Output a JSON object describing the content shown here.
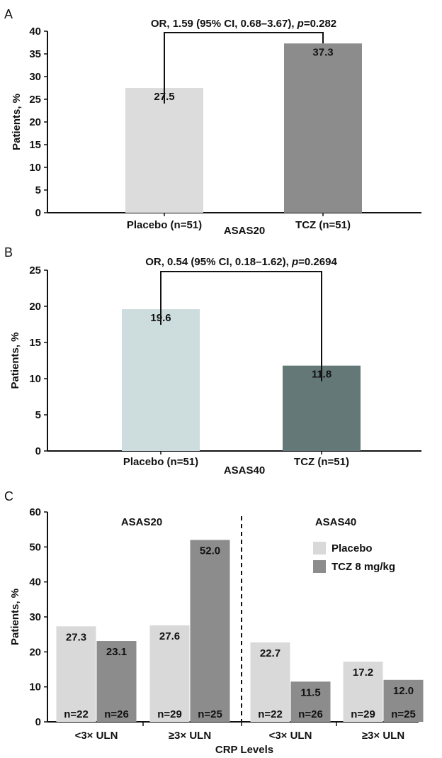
{
  "chart_data": [
    {
      "panel": "A",
      "type": "bar",
      "categories": [
        "Placebo (n=51)",
        "TCZ (n=51)"
      ],
      "values": [
        27.5,
        37.3
      ],
      "value_labels": [
        "27.5",
        "37.3"
      ],
      "colors": [
        "#dcdcdc",
        "#8c8c8c"
      ],
      "xlabel": "ASAS20",
      "ylabel": "Patients, %",
      "ylim": [
        0,
        40
      ],
      "yticks": [
        0,
        5,
        10,
        15,
        20,
        25,
        30,
        35,
        40
      ],
      "annotation": {
        "prefix": "OR, 1.59 (95% CI, 0.68–3.67), ",
        "p_symbol": "p",
        "suffix": "=0.282"
      },
      "grid": false
    },
    {
      "panel": "B",
      "type": "bar",
      "categories": [
        "Placebo (n=51)",
        "TCZ (n=51)"
      ],
      "values": [
        19.6,
        11.8
      ],
      "value_labels": [
        "19.6",
        "11.8"
      ],
      "colors": [
        "#cddcdc",
        "#647878"
      ],
      "xlabel": "ASAS40",
      "ylabel": "Patients, %",
      "ylim": [
        0,
        25
      ],
      "yticks": [
        0,
        5,
        10,
        15,
        20,
        25
      ],
      "annotation": {
        "prefix": "OR, 0.54 (95% CI, 0.18–1.62), ",
        "p_symbol": "p",
        "suffix": "=0.2694"
      },
      "grid": false
    },
    {
      "panel": "C",
      "type": "bar",
      "groups": [
        "ASAS20",
        "ASAS40"
      ],
      "categories": [
        "<3× ULN",
        "≥3× ULN",
        "<3× ULN",
        "≥3× ULN"
      ],
      "series": [
        {
          "name": "Placebo",
          "color": "#d9d9d9",
          "values": [
            27.3,
            27.6,
            22.7,
            17.2
          ],
          "value_labels": [
            "27.3",
            "27.6",
            "22.7",
            "17.2"
          ],
          "n_labels": [
            "n=22",
            "n=29",
            "n=22",
            "n=29"
          ]
        },
        {
          "name": "TCZ 8 mg/kg",
          "color": "#8c8c8c",
          "values": [
            23.1,
            52.0,
            11.5,
            12.0
          ],
          "value_labels": [
            "23.1",
            "52.0",
            "11.5",
            "12.0"
          ],
          "n_labels": [
            "n=26",
            "n=25",
            "n=26",
            "n=25"
          ]
        }
      ],
      "xlabel": "CRP Levels",
      "ylabel": "Patients, %",
      "ylim": [
        0,
        60
      ],
      "yticks": [
        0,
        10,
        20,
        30,
        40,
        50,
        60
      ],
      "legend": "top-right",
      "grid": false
    }
  ]
}
